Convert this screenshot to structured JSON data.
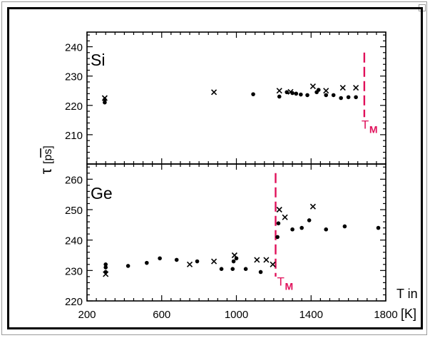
{
  "colors": {
    "axis": "#000000",
    "melting_marker": "#e0105a",
    "points": "#000000"
  },
  "chart_data": [
    {
      "id": "si",
      "type": "scatter",
      "panel_label": "Si",
      "xlim": [
        200,
        1800
      ],
      "ylim": [
        200,
        245
      ],
      "yticks": [
        210,
        220,
        230,
        240
      ],
      "melting_point": {
        "x": 1685,
        "label": "T",
        "subscript": "M"
      },
      "series": [
        {
          "marker": "dot",
          "points": [
            [
              295,
              221.0
            ],
            [
              295,
              222.0
            ],
            [
              1090,
              223.8
            ],
            [
              1230,
              223.0
            ],
            [
              1270,
              224.5
            ],
            [
              1300,
              224.2
            ],
            [
              1320,
              224.0
            ],
            [
              1345,
              223.7
            ],
            [
              1380,
              223.5
            ],
            [
              1430,
              224.5
            ],
            [
              1440,
              225.3
            ],
            [
              1480,
              223.5
            ],
            [
              1520,
              223.5
            ],
            [
              1560,
              222.5
            ],
            [
              1600,
              222.8
            ],
            [
              1640,
              222.8
            ]
          ]
        },
        {
          "marker": "cross",
          "points": [
            [
              295,
              222.5
            ],
            [
              880,
              224.5
            ],
            [
              1230,
              225.0
            ],
            [
              1290,
              224.6
            ],
            [
              1410,
              226.5
            ],
            [
              1480,
              225.0
            ],
            [
              1570,
              226.0
            ],
            [
              1640,
              226.0
            ]
          ]
        }
      ]
    },
    {
      "id": "ge",
      "type": "scatter",
      "panel_label": "Ge",
      "xlim": [
        200,
        1800
      ],
      "ylim": [
        220,
        265
      ],
      "yticks": [
        220,
        230,
        240,
        250,
        260
      ],
      "xticks": [
        200,
        600,
        1000,
        1400,
        1800
      ],
      "xticklabels": [
        "200",
        "600",
        "1000",
        "1400",
        "1800"
      ],
      "ylabel_symbol": "τ",
      "ylabel_unit": "[ps]",
      "xlabel": "T in",
      "xunit": "[K]",
      "melting_point": {
        "x": 1210,
        "label": "T",
        "subscript": "M"
      },
      "series": [
        {
          "marker": "dot",
          "points": [
            [
              300,
              229.5
            ],
            [
              300,
              231.0
            ],
            [
              300,
              232.0
            ],
            [
              420,
              231.5
            ],
            [
              520,
              232.5
            ],
            [
              590,
              234.0
            ],
            [
              680,
              233.5
            ],
            [
              790,
              233.0
            ],
            [
              920,
              230.5
            ],
            [
              980,
              230.5
            ],
            [
              985,
              233.0
            ],
            [
              1000,
              234.0
            ],
            [
              1050,
              230.5
            ],
            [
              1130,
              229.5
            ],
            [
              1220,
              241.0
            ],
            [
              1225,
              245.5
            ],
            [
              1300,
              243.5
            ],
            [
              1350,
              244.0
            ],
            [
              1390,
              246.5
            ],
            [
              1480,
              243.5
            ],
            [
              1580,
              244.5
            ],
            [
              1760,
              244.0
            ]
          ]
        },
        {
          "marker": "cross",
          "points": [
            [
              300,
              228.8
            ],
            [
              750,
              232.0
            ],
            [
              880,
              233.0
            ],
            [
              990,
              235.0
            ],
            [
              1110,
              233.5
            ],
            [
              1160,
              233.5
            ],
            [
              1195,
              232.0
            ],
            [
              1230,
              250.0
            ],
            [
              1260,
              247.5
            ],
            [
              1410,
              251.0
            ]
          ]
        }
      ]
    }
  ]
}
